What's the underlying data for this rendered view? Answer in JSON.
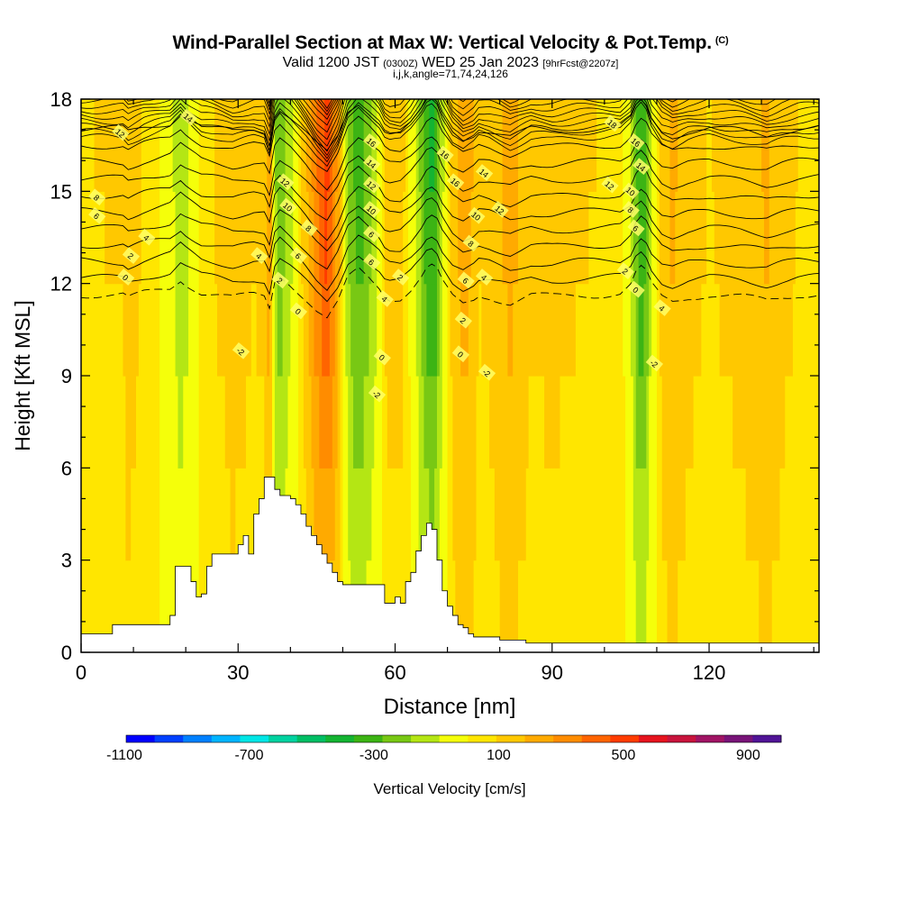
{
  "title": {
    "main": "Wind-Parallel Section at Max W: Vertical Velocity & Pot.Temp.",
    "copyright": "(C)",
    "valid_prefix": "Valid 1200 JST",
    "valid_utc": "(0300Z)",
    "valid_date": "WED 25 Jan 2023",
    "forecast": "[9hrFcst@2207z]",
    "indices": "i,j,k,angle=71,74,24,126"
  },
  "chart_data": {
    "type": "heatmap",
    "xlabel": "Distance [nm]",
    "ylabel": "Height [Kft MSL]",
    "xlim": [
      0,
      141
    ],
    "ylim": [
      0,
      18
    ],
    "x_ticks": [
      0,
      30,
      60,
      90,
      120
    ],
    "y_ticks": [
      0,
      3,
      6,
      9,
      12,
      15,
      18
    ],
    "colorbar": {
      "label": "Vertical Velocity [cm/s]",
      "tick_labels": [
        "-1100",
        "-700",
        "-300",
        "100",
        "500",
        "900"
      ],
      "tick_values": [
        -1100,
        -700,
        -300,
        100,
        500,
        900
      ],
      "range": [
        -1100,
        1000
      ],
      "colors": [
        "#0000ff",
        "#0040ff",
        "#0080ff",
        "#00b4ff",
        "#00e6e6",
        "#00d2a0",
        "#00be64",
        "#14b432",
        "#3cb414",
        "#78c814",
        "#b4e614",
        "#f5ff0a",
        "#ffe600",
        "#ffc800",
        "#ffaa00",
        "#ff8c00",
        "#ff6400",
        "#ff3c00",
        "#e6141e",
        "#c8143c",
        "#a01464",
        "#781478",
        "#501496"
      ]
    },
    "vertical_velocity_profile": {
      "x": [
        0,
        8,
        9,
        12,
        17,
        19,
        20,
        23,
        26,
        29,
        33,
        35,
        36,
        37,
        38,
        40,
        43,
        45,
        47,
        49,
        51,
        53,
        55,
        57,
        58,
        59,
        61,
        63,
        65,
        66,
        67,
        68,
        69,
        71,
        73,
        75,
        76,
        78,
        82,
        86,
        90,
        95,
        100,
        103,
        105,
        106,
        107,
        108,
        109,
        111,
        113,
        116,
        120,
        126,
        131,
        134,
        137,
        141
      ],
      "w": [
        50,
        60,
        120,
        40,
        -40,
        -180,
        -120,
        20,
        60,
        110,
        60,
        80,
        250,
        -150,
        -250,
        -120,
        120,
        300,
        430,
        200,
        -180,
        -320,
        -200,
        -60,
        60,
        100,
        100,
        -20,
        -200,
        -320,
        -360,
        -300,
        -120,
        100,
        200,
        130,
        60,
        80,
        180,
        70,
        90,
        60,
        50,
        40,
        -80,
        -250,
        -330,
        -260,
        -80,
        100,
        160,
        90,
        50,
        90,
        150,
        90,
        50,
        40
      ]
    },
    "terrain_kft": {
      "x": [
        0,
        3,
        6,
        9,
        16,
        17,
        18,
        20,
        21,
        22,
        23,
        24,
        25,
        26,
        29,
        30,
        31,
        32,
        33,
        34,
        35,
        36,
        37,
        38,
        39,
        40,
        41,
        42,
        43,
        44,
        45,
        46,
        47,
        48,
        49,
        50,
        51,
        52,
        53,
        54,
        56,
        58,
        60,
        61,
        62,
        63,
        64,
        65,
        66,
        67,
        68,
        69,
        70,
        71,
        72,
        73,
        74,
        75,
        76,
        78,
        80,
        83,
        84,
        85,
        86,
        88,
        90,
        100,
        110,
        120,
        130,
        140,
        141
      ],
      "h": [
        0.6,
        0.6,
        0.9,
        0.9,
        0.9,
        1.2,
        2.8,
        2.8,
        2.3,
        1.8,
        1.9,
        2.8,
        3.2,
        3.2,
        3.2,
        3.5,
        3.8,
        3.2,
        4.5,
        5.0,
        5.7,
        5.7,
        5.3,
        5.1,
        5.1,
        5.0,
        4.8,
        4.5,
        4.1,
        3.8,
        3.5,
        3.2,
        2.9,
        2.6,
        2.3,
        2.2,
        2.2,
        2.2,
        2.2,
        2.2,
        2.2,
        1.6,
        1.8,
        1.6,
        2.3,
        2.6,
        3.3,
        3.8,
        4.2,
        4.0,
        3.0,
        2.0,
        1.5,
        1.2,
        0.9,
        0.8,
        0.6,
        0.5,
        0.5,
        0.5,
        0.4,
        0.4,
        0.4,
        0.3,
        0.3,
        0.3,
        0.3,
        0.3,
        0.3,
        0.3,
        0.3,
        0.3,
        0.3
      ]
    },
    "pot_temp_contours": [
      {
        "level": -2,
        "dashed": true
      },
      {
        "level": 0,
        "dashed": false
      },
      {
        "level": 2,
        "dashed": false
      },
      {
        "level": 4,
        "dashed": false
      },
      {
        "level": 6,
        "dashed": false
      },
      {
        "level": 8,
        "dashed": false
      },
      {
        "level": 10,
        "dashed": false
      },
      {
        "level": 12,
        "dashed": false
      },
      {
        "level": 14,
        "dashed": false
      },
      {
        "level": 16,
        "dashed": false
      },
      {
        "level": 18,
        "dashed": false
      }
    ],
    "contour_labels": [
      {
        "text": "14",
        "x": 20.5,
        "y": 17.4
      },
      {
        "text": "12",
        "x": 7.5,
        "y": 16.9
      },
      {
        "text": "8",
        "x": 3,
        "y": 14.8
      },
      {
        "text": "6",
        "x": 3,
        "y": 14.2
      },
      {
        "text": "4",
        "x": 12.5,
        "y": 13.5
      },
      {
        "text": "2",
        "x": 9.5,
        "y": 12.9
      },
      {
        "text": "0",
        "x": 8.5,
        "y": 12.2
      },
      {
        "text": "-2",
        "x": 30.5,
        "y": 9.8
      },
      {
        "text": "4",
        "x": 34,
        "y": 12.9
      },
      {
        "text": "2",
        "x": 38,
        "y": 12.1
      },
      {
        "text": "12",
        "x": 39,
        "y": 15.3
      },
      {
        "text": "10",
        "x": 39.5,
        "y": 14.5
      },
      {
        "text": "6",
        "x": 41.5,
        "y": 12.9
      },
      {
        "text": "8",
        "x": 43.5,
        "y": 13.8
      },
      {
        "text": "0",
        "x": 41.5,
        "y": 11.1
      },
      {
        "text": "16",
        "x": 55.5,
        "y": 16.6
      },
      {
        "text": "14",
        "x": 55.5,
        "y": 15.9
      },
      {
        "text": "12",
        "x": 55.5,
        "y": 15.2
      },
      {
        "text": "10",
        "x": 55.5,
        "y": 14.4
      },
      {
        "text": "6",
        "x": 55.5,
        "y": 13.6
      },
      {
        "text": "6",
        "x": 55.5,
        "y": 12.7
      },
      {
        "text": "4",
        "x": 58,
        "y": 11.5
      },
      {
        "text": "2",
        "x": 61,
        "y": 12.2
      },
      {
        "text": "0",
        "x": 57.5,
        "y": 9.6
      },
      {
        "text": "-2",
        "x": 56.5,
        "y": 8.4
      },
      {
        "text": "16",
        "x": 69.5,
        "y": 16.2
      },
      {
        "text": "16",
        "x": 71.5,
        "y": 15.3
      },
      {
        "text": "14",
        "x": 77,
        "y": 15.6
      },
      {
        "text": "12",
        "x": 80,
        "y": 14.4
      },
      {
        "text": "10",
        "x": 75.5,
        "y": 14.2
      },
      {
        "text": "8",
        "x": 74.5,
        "y": 13.3
      },
      {
        "text": "6",
        "x": 73.5,
        "y": 12.1
      },
      {
        "text": "4",
        "x": 77,
        "y": 12.2
      },
      {
        "text": "2",
        "x": 73,
        "y": 10.8
      },
      {
        "text": "0",
        "x": 72.5,
        "y": 9.7
      },
      {
        "text": "-2",
        "x": 77.5,
        "y": 9.1
      },
      {
        "text": "18",
        "x": 101.5,
        "y": 17.2
      },
      {
        "text": "16",
        "x": 106,
        "y": 16.6
      },
      {
        "text": "14",
        "x": 107,
        "y": 15.8
      },
      {
        "text": "12",
        "x": 101,
        "y": 15.2
      },
      {
        "text": "10",
        "x": 105,
        "y": 15.0
      },
      {
        "text": "8",
        "x": 105,
        "y": 14.4
      },
      {
        "text": "6",
        "x": 106,
        "y": 13.8
      },
      {
        "text": "2",
        "x": 104,
        "y": 12.4
      },
      {
        "text": "0",
        "x": 106,
        "y": 11.8
      },
      {
        "text": "4",
        "x": 111,
        "y": 11.2
      },
      {
        "text": "-2",
        "x": 109.5,
        "y": 9.4
      }
    ]
  }
}
